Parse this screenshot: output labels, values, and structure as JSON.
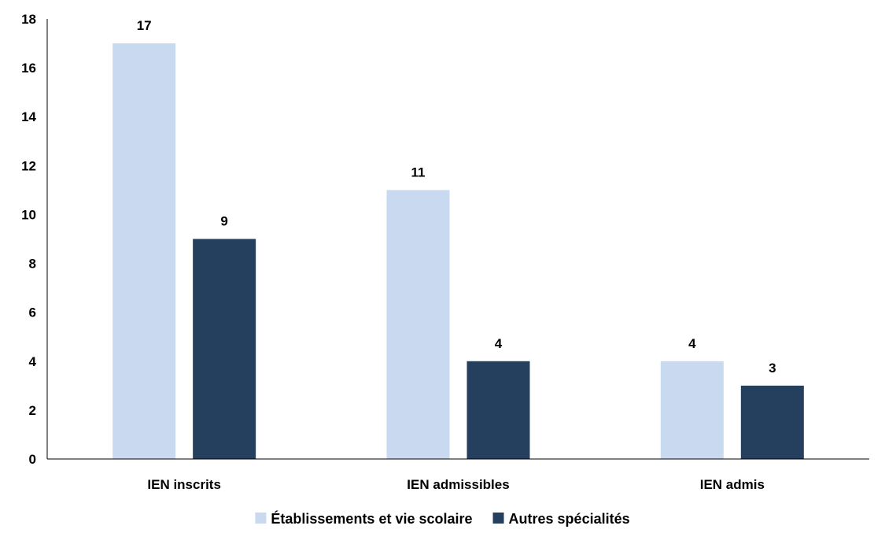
{
  "chart_data": {
    "type": "bar",
    "categories": [
      "IEN inscrits",
      "IEN admissibles",
      "IEN admis"
    ],
    "series": [
      {
        "name": "Établissements et vie scolaire",
        "values": [
          17,
          11,
          4
        ],
        "color": "#c9daf0"
      },
      {
        "name": "Autres spécialités",
        "values": [
          9,
          4,
          3
        ],
        "color": "#253f5e"
      }
    ],
    "ylim": [
      0,
      18
    ],
    "yticks": [
      "0",
      "2",
      "4",
      "6",
      "8",
      "10",
      "12",
      "14",
      "16",
      "18"
    ],
    "grid": false,
    "legend_position": "bottom"
  }
}
